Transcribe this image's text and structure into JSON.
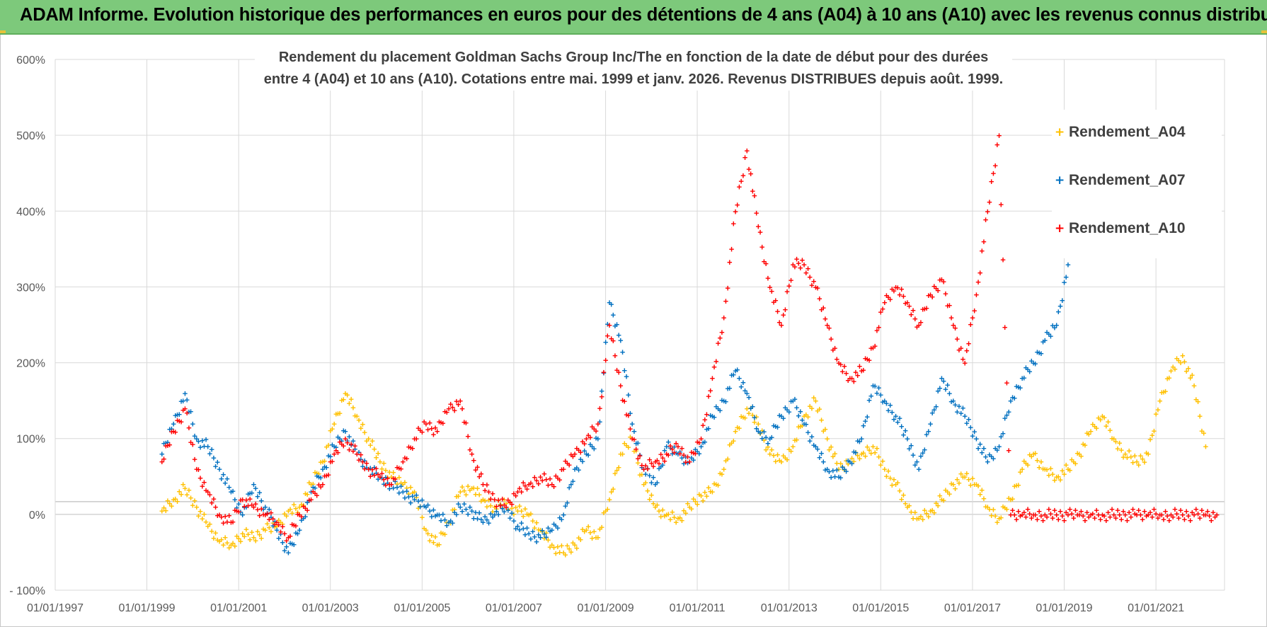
{
  "banner": {
    "title": "ADAM Informe. Evolution historique des performances en euros pour des détentions de 4 ans (A04) à 10 ans (A10) avec les revenus connus distribués"
  },
  "colors": {
    "banner": "#7dc97b",
    "A04": "#ffc000",
    "A07": "#0070c0",
    "A10": "#ff0000",
    "grid": "#d9d9d9",
    "text": "#595959"
  },
  "chart_data": {
    "type": "scatter",
    "title_lines": [
      "Rendement du placement Goldman Sachs Group Inc/The en fonction de la date de début pour des durées",
      "entre 4 (A04) et 10 ans (A10).  Cotations entre mai. 1999 et janv. 2026.  Revenus DISTRIBUES depuis août. 1999."
    ],
    "xlabel": "",
    "ylabel": "",
    "x_tick_labels": [
      "01/01/1997",
      "01/01/1999",
      "01/01/2001",
      "01/01/2003",
      "01/01/2005",
      "01/01/2007",
      "01/01/2009",
      "01/01/2011",
      "01/01/2013",
      "01/01/2015",
      "01/01/2017",
      "01/01/2019",
      "01/01/2021"
    ],
    "y_tick_labels": [
      "600%",
      "500%",
      "400%",
      "300%",
      "200%",
      "100%",
      "0%",
      "- 100%"
    ],
    "xlim": [
      "1997-01-01",
      "2022-07-01"
    ],
    "ylim": [
      -100,
      600
    ],
    "grid": true,
    "legend_position": "top-right",
    "marker": "+",
    "series": [
      {
        "name": "Rendement_A04",
        "color": "#ffc000",
        "x": [
          "1999-05",
          "1999-08",
          "1999-11",
          "2000-02",
          "2000-05",
          "2000-08",
          "2000-11",
          "2001-02",
          "2001-05",
          "2001-08",
          "2001-11",
          "2002-02",
          "2002-05",
          "2002-08",
          "2002-11",
          "2003-02",
          "2003-05",
          "2003-08",
          "2003-11",
          "2004-02",
          "2004-05",
          "2004-08",
          "2004-11",
          "2005-02",
          "2005-05",
          "2005-08",
          "2005-11",
          "2006-02",
          "2006-05",
          "2006-08",
          "2006-11",
          "2007-02",
          "2007-05",
          "2007-08",
          "2007-11",
          "2008-02",
          "2008-05",
          "2008-08",
          "2008-11",
          "2009-02",
          "2009-05",
          "2009-08",
          "2009-11",
          "2010-02",
          "2010-05",
          "2010-08",
          "2010-11",
          "2011-02",
          "2011-05",
          "2011-08",
          "2011-11",
          "2012-02",
          "2012-05",
          "2012-08",
          "2012-11",
          "2013-02",
          "2013-05",
          "2013-08",
          "2013-11",
          "2014-02",
          "2014-05",
          "2014-08",
          "2014-11",
          "2015-02",
          "2015-05",
          "2015-08",
          "2015-11",
          "2016-02",
          "2016-05",
          "2016-08",
          "2016-11",
          "2017-02",
          "2017-05",
          "2017-08",
          "2017-11",
          "2018-02",
          "2018-05",
          "2018-08",
          "2018-11",
          "2019-02",
          "2019-05",
          "2019-08",
          "2019-11",
          "2020-02",
          "2020-05",
          "2020-08",
          "2020-11",
          "2021-02",
          "2021-05",
          "2021-08",
          "2021-11",
          "2022-02"
        ],
        "y": [
          5,
          20,
          35,
          10,
          -15,
          -35,
          -40,
          -25,
          -30,
          -20,
          -15,
          5,
          10,
          40,
          70,
          120,
          160,
          130,
          100,
          70,
          50,
          40,
          30,
          -20,
          -40,
          -10,
          30,
          35,
          20,
          10,
          15,
          5,
          0,
          -20,
          -40,
          -50,
          -40,
          -20,
          -30,
          20,
          80,
          100,
          40,
          10,
          0,
          -5,
          10,
          25,
          30,
          60,
          110,
          140,
          120,
          80,
          70,
          90,
          130,
          150,
          100,
          60,
          70,
          80,
          90,
          60,
          40,
          10,
          -5,
          5,
          20,
          40,
          50,
          40,
          10,
          -5,
          20,
          60,
          80,
          60,
          50,
          60,
          80,
          110,
          130,
          100,
          80,
          70,
          80,
          150,
          190,
          210,
          170,
          90
        ]
      },
      {
        "name": "Rendement_A07",
        "color": "#0070c0",
        "x": [
          "1999-05",
          "1999-08",
          "1999-11",
          "2000-02",
          "2000-05",
          "2000-08",
          "2000-11",
          "2001-02",
          "2001-05",
          "2001-08",
          "2001-11",
          "2002-02",
          "2002-05",
          "2002-08",
          "2002-11",
          "2003-02",
          "2003-05",
          "2003-08",
          "2003-11",
          "2004-02",
          "2004-05",
          "2004-08",
          "2004-11",
          "2005-02",
          "2005-05",
          "2005-08",
          "2005-11",
          "2006-02",
          "2006-05",
          "2006-08",
          "2006-11",
          "2007-02",
          "2007-05",
          "2007-08",
          "2007-11",
          "2008-02",
          "2008-05",
          "2008-08",
          "2008-11",
          "2009-02",
          "2009-05",
          "2009-08",
          "2009-11",
          "2010-02",
          "2010-05",
          "2010-08",
          "2010-11",
          "2011-02",
          "2011-05",
          "2011-08",
          "2011-11",
          "2012-02",
          "2012-05",
          "2012-08",
          "2012-11",
          "2013-02",
          "2013-05",
          "2013-08",
          "2013-11",
          "2014-02",
          "2014-05",
          "2014-08",
          "2014-11",
          "2015-02",
          "2015-05",
          "2015-08",
          "2015-11",
          "2016-02",
          "2016-05",
          "2016-08",
          "2016-11",
          "2017-02",
          "2017-05",
          "2017-08",
          "2017-11",
          "2018-02",
          "2018-05",
          "2018-08",
          "2018-11",
          "2019-02"
        ],
        "y": [
          80,
          120,
          160,
          100,
          90,
          60,
          30,
          0,
          40,
          10,
          -20,
          -50,
          -20,
          30,
          60,
          90,
          110,
          80,
          60,
          50,
          40,
          30,
          20,
          10,
          0,
          -10,
          10,
          5,
          -10,
          0,
          10,
          -15,
          -25,
          -30,
          -20,
          0,
          60,
          80,
          100,
          280,
          230,
          120,
          60,
          40,
          90,
          80,
          70,
          90,
          130,
          150,
          190,
          160,
          110,
          100,
          130,
          150,
          120,
          90,
          60,
          50,
          70,
          100,
          170,
          150,
          130,
          100,
          60,
          120,
          180,
          150,
          130,
          100,
          70,
          90,
          150,
          180,
          200,
          230,
          250,
          330
        ]
      },
      {
        "name": "Rendement_A10",
        "color": "#ff0000",
        "x": [
          "1999-05",
          "1999-08",
          "1999-11",
          "2000-02",
          "2000-05",
          "2000-08",
          "2000-11",
          "2001-02",
          "2001-05",
          "2001-08",
          "2001-11",
          "2002-02",
          "2002-05",
          "2002-08",
          "2002-11",
          "2003-02",
          "2003-05",
          "2003-08",
          "2003-11",
          "2004-02",
          "2004-05",
          "2004-08",
          "2004-11",
          "2005-02",
          "2005-05",
          "2005-08",
          "2005-11",
          "2006-02",
          "2006-05",
          "2006-08",
          "2006-11",
          "2007-02",
          "2007-05",
          "2007-08",
          "2007-11",
          "2008-02",
          "2008-05",
          "2008-08",
          "2008-11",
          "2009-02",
          "2009-05",
          "2009-08",
          "2009-11",
          "2010-02",
          "2010-05",
          "2010-08",
          "2010-11",
          "2011-02",
          "2011-05",
          "2011-08",
          "2011-11",
          "2012-02",
          "2012-05",
          "2012-08",
          "2012-11",
          "2013-02",
          "2013-05",
          "2013-08",
          "2013-11",
          "2014-02",
          "2014-05",
          "2014-08",
          "2014-11",
          "2015-02",
          "2015-05",
          "2015-08",
          "2015-11",
          "2016-02",
          "2016-05",
          "2016-08",
          "2016-11",
          "2017-02",
          "2017-05",
          "2017-08",
          "2017-11",
          "2018-02",
          "2018-05",
          "2018-08",
          "2018-11",
          "2019-02",
          "2019-05",
          "2019-08",
          "2019-11",
          "2020-02",
          "2020-05",
          "2020-08",
          "2020-11",
          "2021-02",
          "2021-05",
          "2021-08",
          "2021-11",
          "2022-02",
          "2022-05"
        ],
        "y": [
          70,
          110,
          140,
          60,
          30,
          0,
          -10,
          20,
          10,
          0,
          -10,
          -30,
          0,
          20,
          40,
          80,
          100,
          80,
          60,
          50,
          40,
          70,
          100,
          120,
          110,
          140,
          150,
          80,
          40,
          20,
          10,
          30,
          40,
          50,
          40,
          60,
          80,
          100,
          120,
          250,
          170,
          100,
          60,
          70,
          80,
          90,
          70,
          100,
          180,
          260,
          400,
          480,
          380,
          300,
          250,
          330,
          330,
          300,
          250,
          200,
          180,
          190,
          220,
          280,
          300,
          280,
          250,
          290,
          310,
          250,
          200,
          290,
          400,
          500,
          0,
          0,
          0,
          0,
          0,
          0,
          0,
          0,
          0,
          0,
          0,
          0,
          0,
          0,
          0,
          0,
          0,
          0,
          0
        ]
      }
    ]
  }
}
